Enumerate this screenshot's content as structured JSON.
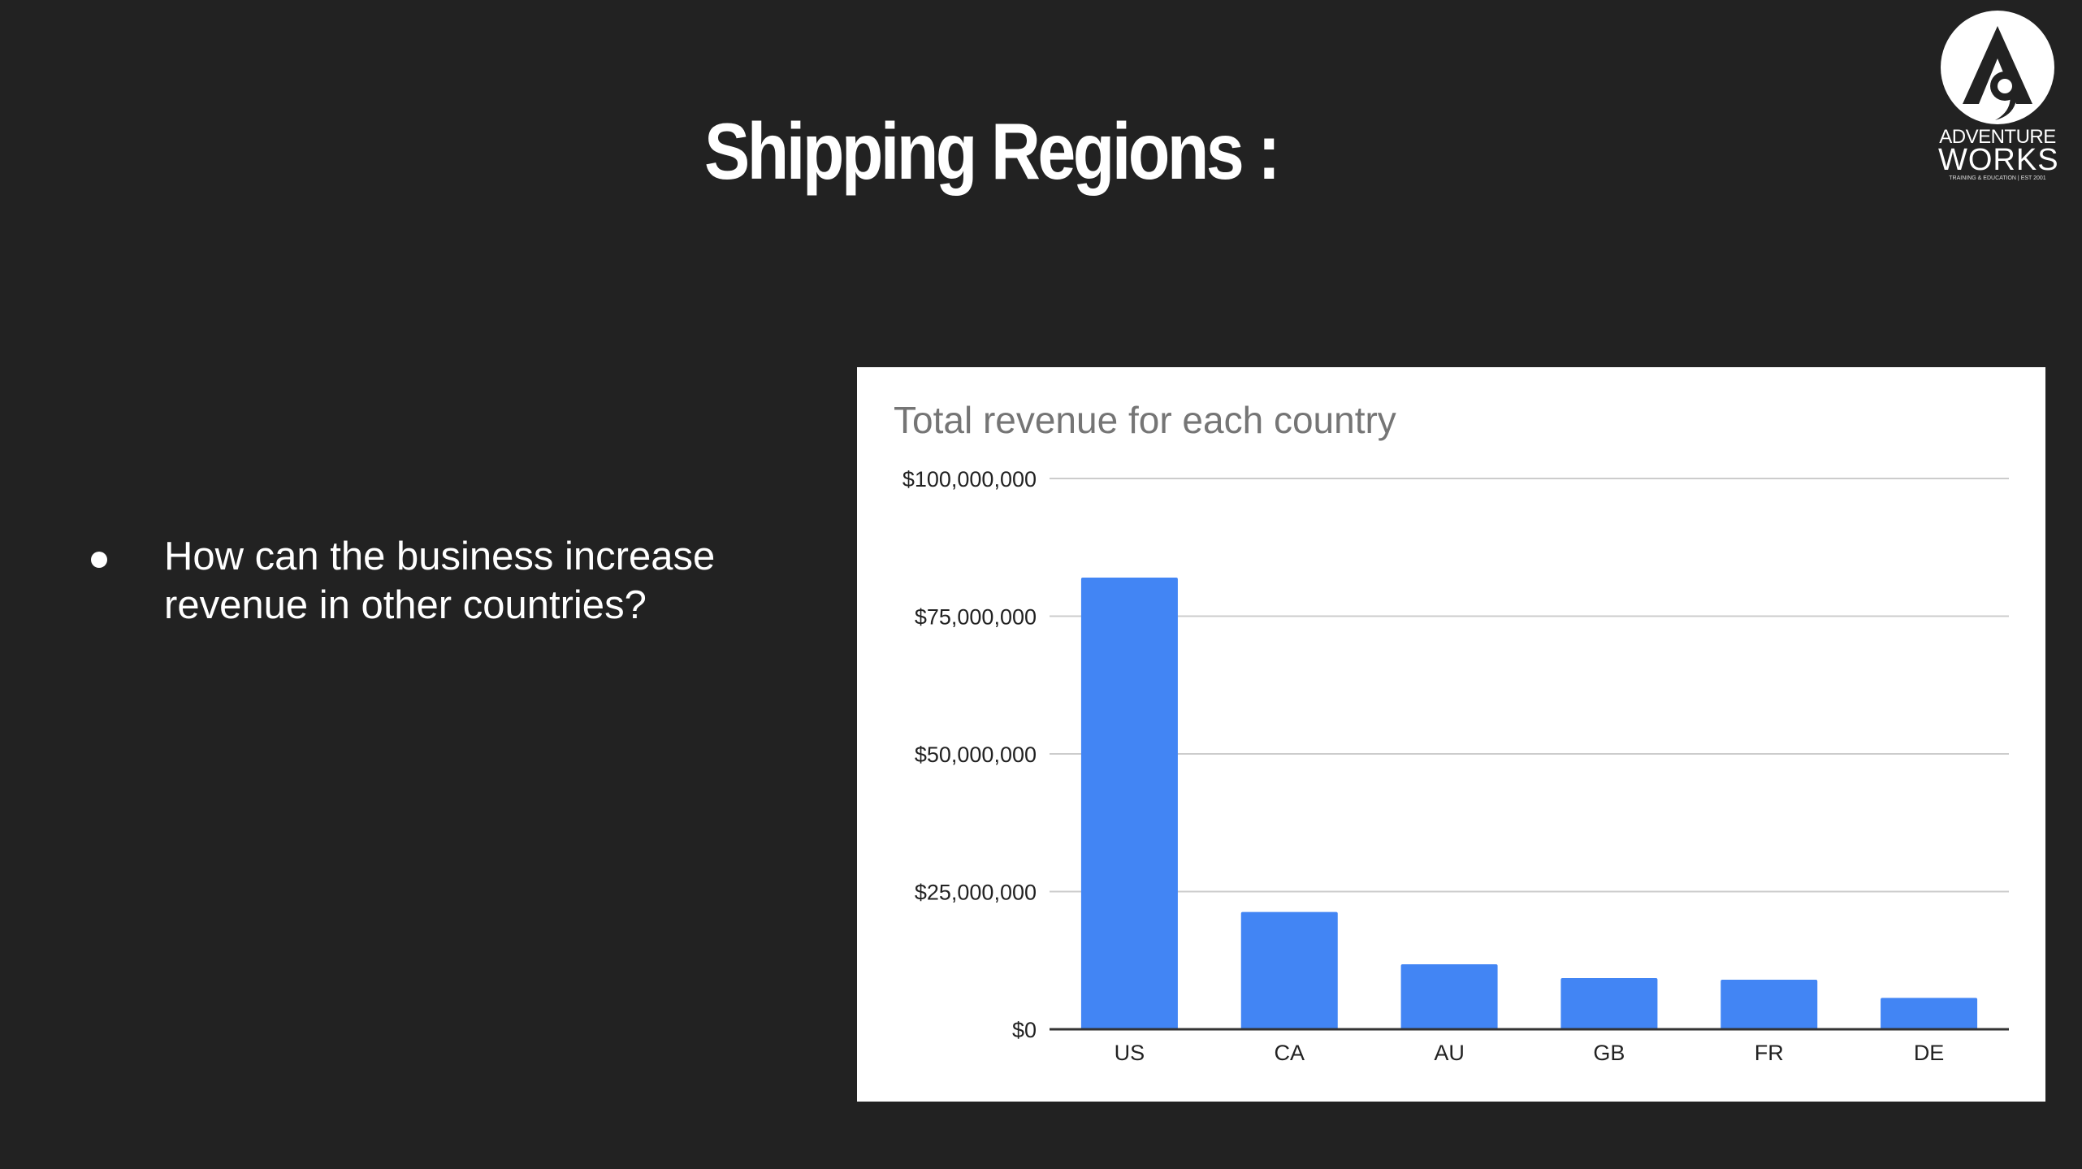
{
  "slide": {
    "title": "Shipping Regions :",
    "bullets": [
      "How can the business increase revenue in other countries?"
    ]
  },
  "logo": {
    "line1": "ADVENTURE",
    "line2": "WORKS",
    "line3": "TRAINING & EDUCATION  |  EST 2001",
    "icon": "adventure-works-logo-icon"
  },
  "colors": {
    "background": "#222222",
    "bar": "#4285f4",
    "gridline": "#cccccc",
    "axis": "#333333"
  },
  "chart_data": {
    "type": "bar",
    "title": "Total revenue for each country",
    "xlabel": "",
    "ylabel": "",
    "categories": [
      "US",
      "CA",
      "AU",
      "GB",
      "FR",
      "DE"
    ],
    "values": [
      82000000,
      21300000,
      11800000,
      9300000,
      9000000,
      5700000
    ],
    "ylim": [
      0,
      100000000
    ],
    "yticks": [
      0,
      25000000,
      50000000,
      75000000,
      100000000
    ],
    "ytick_labels": [
      "$0",
      "$25,000,000",
      "$50,000,000",
      "$75,000,000",
      "$100,000,000"
    ],
    "grid": true,
    "legend": "none"
  }
}
